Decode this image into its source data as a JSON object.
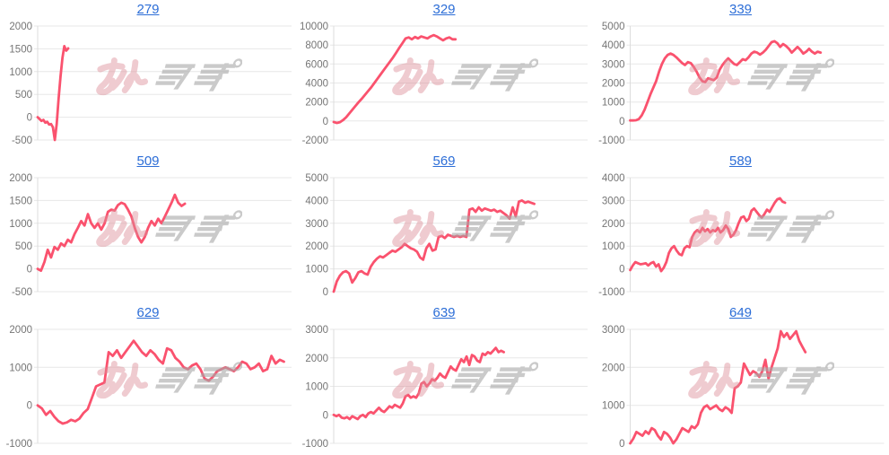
{
  "style": {
    "background": "#ffffff",
    "line_color": "#fa526e",
    "grid_color": "#e7e7e7",
    "axis_border_color": "#dcdcdc",
    "axis_label_color": "#757575",
    "title_link_color": "#2d6ed7",
    "watermark_pink": "#dd8e99",
    "watermark_gray": "#a8a8a8"
  },
  "watermark": {
    "text": "みんレポ"
  },
  "chart_data": [
    {
      "title": "279",
      "type": "line",
      "grid": true,
      "legend": "none",
      "ylim": [
        -500,
        2000
      ],
      "yticks": [
        2000,
        1500,
        1000,
        500,
        0,
        -500
      ],
      "x_extent": 0.12,
      "values": [
        0,
        -40,
        -80,
        -60,
        -120,
        -100,
        -160,
        -150,
        -220,
        -500,
        -150,
        400,
        900,
        1300,
        1560,
        1460,
        1510
      ]
    },
    {
      "title": "329",
      "type": "line",
      "grid": true,
      "legend": "none",
      "ylim": [
        -2000,
        10000
      ],
      "yticks": [
        10000,
        8000,
        6000,
        4000,
        2000,
        0,
        -2000
      ],
      "x_extent": 0.48,
      "values": [
        -100,
        -200,
        -120,
        100,
        400,
        800,
        1200,
        1600,
        2000,
        2350,
        2750,
        3150,
        3550,
        4000,
        4450,
        4900,
        5350,
        5800,
        6250,
        6700,
        7200,
        7700,
        8200,
        8700,
        8800,
        8600,
        8850,
        8700,
        8900,
        8800,
        8700,
        8900,
        9050,
        8900,
        8700,
        8500,
        8700,
        8800,
        8600,
        8600
      ]
    },
    {
      "title": "339",
      "type": "line",
      "grid": true,
      "legend": "none",
      "ylim": [
        -1000,
        5000
      ],
      "yticks": [
        5000,
        4000,
        3000,
        2000,
        1000,
        0,
        -1000
      ],
      "x_extent": 0.75,
      "values": [
        30,
        30,
        40,
        100,
        300,
        600,
        1000,
        1400,
        1750,
        2100,
        2600,
        3000,
        3300,
        3480,
        3550,
        3480,
        3350,
        3200,
        3050,
        2950,
        3100,
        3050,
        2850,
        2600,
        2300,
        2100,
        2050,
        2250,
        2200,
        2150,
        2300,
        2700,
        2950,
        3150,
        3300,
        3150,
        3000,
        2950,
        3100,
        3250,
        3200,
        3350,
        3550,
        3650,
        3600,
        3500,
        3600,
        3750,
        3950,
        4150,
        4200,
        4100,
        3900,
        4050,
        3950,
        3800,
        3600,
        3750,
        3900,
        3750,
        3550,
        3650,
        3800,
        3650,
        3550,
        3650,
        3600
      ]
    },
    {
      "title": "509",
      "type": "line",
      "grid": true,
      "legend": "none",
      "ylim": [
        -500,
        2000
      ],
      "yticks": [
        2000,
        1500,
        1000,
        500,
        0,
        -500
      ],
      "x_extent": 0.58,
      "values": [
        0,
        -40,
        150,
        420,
        250,
        480,
        420,
        560,
        500,
        640,
        580,
        760,
        900,
        1050,
        950,
        1200,
        1000,
        900,
        1000,
        860,
        1000,
        1250,
        1300,
        1280,
        1400,
        1450,
        1420,
        1300,
        1150,
        900,
        700,
        580,
        700,
        900,
        1050,
        950,
        1100,
        1000,
        1150,
        1300,
        1450,
        1625,
        1450,
        1380,
        1430
      ]
    },
    {
      "title": "569",
      "type": "line",
      "grid": true,
      "legend": "none",
      "ylim": [
        0,
        5000
      ],
      "yticks": [
        5000,
        4000,
        3000,
        2000,
        1000,
        0
      ],
      "x_extent": 0.79,
      "values": [
        0,
        450,
        700,
        850,
        900,
        800,
        400,
        600,
        850,
        900,
        800,
        750,
        1100,
        1300,
        1450,
        1550,
        1500,
        1600,
        1700,
        1800,
        1750,
        1850,
        1950,
        2100,
        2000,
        1900,
        1850,
        1750,
        1500,
        1400,
        1900,
        2100,
        1800,
        1850,
        2400,
        2450,
        2350,
        2500,
        2450,
        2400,
        2450,
        2400,
        2450,
        2400,
        3600,
        3650,
        3500,
        3700,
        3550,
        3650,
        3600,
        3550,
        3600,
        3500,
        3550,
        3450,
        3350,
        3200,
        3700,
        3300,
        3950,
        4000,
        3900,
        3950,
        3900,
        3850
      ]
    },
    {
      "title": "589",
      "type": "line",
      "grid": true,
      "legend": "none",
      "ylim": [
        -1000,
        4000
      ],
      "yticks": [
        4000,
        3000,
        2000,
        1000,
        0,
        -1000
      ],
      "x_extent": 0.61,
      "values": [
        -50,
        150,
        300,
        250,
        200,
        220,
        250,
        150,
        250,
        300,
        100,
        200,
        -100,
        50,
        300,
        700,
        900,
        1000,
        800,
        650,
        600,
        900,
        1000,
        950,
        1400,
        1600,
        1700,
        1600,
        1800,
        1650,
        1750,
        1600,
        1700,
        1650,
        1800,
        1600,
        1700,
        1900,
        1750,
        1400,
        1500,
        1700,
        2000,
        2250,
        2300,
        2100,
        2200,
        2550,
        2650,
        2500,
        2350,
        2250,
        2400,
        2600,
        2500,
        2700,
        2900,
        3050,
        3100,
        2950,
        2900
      ]
    },
    {
      "title": "629",
      "type": "line",
      "grid": true,
      "legend": "none",
      "ylim": [
        -1000,
        2000
      ],
      "yticks": [
        2000,
        1000,
        0,
        -1000
      ],
      "x_extent": 0.97,
      "values": [
        0,
        -80,
        -250,
        -150,
        -300,
        -420,
        -480,
        -450,
        -380,
        -420,
        -350,
        -200,
        -100,
        200,
        500,
        550,
        600,
        1400,
        1300,
        1450,
        1250,
        1400,
        1550,
        1700,
        1550,
        1400,
        1300,
        1450,
        1350,
        1200,
        1100,
        1500,
        1450,
        1250,
        1150,
        1000,
        950,
        1050,
        1100,
        950,
        700,
        650,
        750,
        900,
        950,
        1000,
        950,
        900,
        1000,
        1150,
        1100,
        950,
        1000,
        1100,
        900,
        950,
        1300,
        1100,
        1200,
        1150
      ]
    },
    {
      "title": "639",
      "type": "line",
      "grid": true,
      "legend": "none",
      "ylim": [
        -1000,
        3000
      ],
      "yticks": [
        3000,
        2000,
        1000,
        0,
        -1000
      ],
      "x_extent": 0.67,
      "values": [
        0,
        -50,
        0,
        -100,
        -120,
        -80,
        -150,
        -50,
        -100,
        -150,
        -50,
        0,
        -80,
        50,
        100,
        50,
        150,
        250,
        150,
        100,
        200,
        300,
        250,
        350,
        300,
        250,
        400,
        650,
        700,
        600,
        650,
        600,
        750,
        1100,
        1150,
        1000,
        1100,
        1250,
        1200,
        1300,
        1450,
        1350,
        1300,
        1500,
        1700,
        1600,
        1550,
        1750,
        1950,
        1850,
        2050,
        1750,
        2100,
        2050,
        1900,
        1850,
        2150,
        2100,
        2200,
        2150,
        2250,
        2350,
        2200,
        2250,
        2200
      ]
    },
    {
      "title": "649",
      "type": "line",
      "grid": true,
      "legend": "none",
      "ylim": [
        0,
        3000
      ],
      "yticks": [
        3000,
        2000,
        1000,
        0
      ],
      "x_extent": 0.69,
      "values": [
        0,
        120,
        300,
        250,
        200,
        320,
        250,
        400,
        350,
        200,
        100,
        300,
        250,
        150,
        0,
        100,
        250,
        400,
        350,
        300,
        450,
        400,
        500,
        800,
        950,
        1000,
        900,
        950,
        1000,
        900,
        850,
        950,
        900,
        800,
        1450,
        1500,
        1600,
        2100,
        1950,
        1800,
        1900,
        1850,
        1750,
        1900,
        2200,
        1700,
        2000,
        2250,
        2500,
        2950,
        2800,
        2900,
        2750,
        2850,
        2950,
        2700,
        2550,
        2400
      ]
    }
  ]
}
